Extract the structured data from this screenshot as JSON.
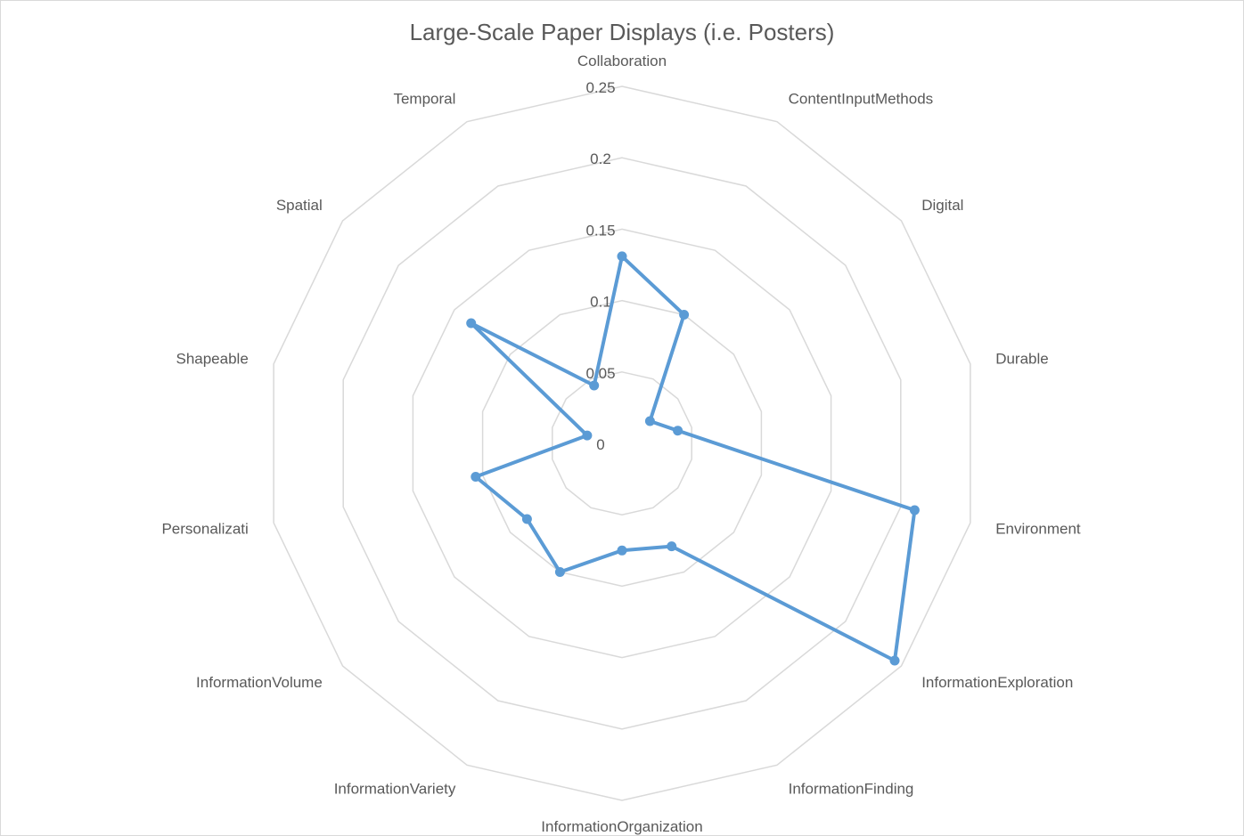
{
  "chart_data": {
    "type": "radar",
    "title": "Large-Scale Paper Displays (i.e. Posters)",
    "categories": [
      "Collaboration",
      "ContentInputMethods",
      "Digital",
      "Durable",
      "Environment",
      "InformationExploration",
      "InformationFinding",
      "InformationOrganization",
      "InformationVariety",
      "InformationVolume",
      "Personalizati",
      "Shapeable",
      "Spatial",
      "Temporal"
    ],
    "series": [
      {
        "values": [
          0.131,
          0.1,
          0.025,
          0.04,
          0.21,
          0.244,
          0.08,
          0.075,
          0.1,
          0.085,
          0.105,
          0.025,
          0.135,
          0.045
        ]
      }
    ],
    "rlim": [
      0,
      0.25
    ],
    "rticks": [
      "0",
      "0.05",
      "0.1",
      "0.15",
      "0.2",
      "0.25"
    ],
    "grid": true,
    "legend": "none",
    "colors": {
      "series": "#5b9bd5",
      "grid": "#d9d9d9",
      "text": "#595959"
    }
  }
}
